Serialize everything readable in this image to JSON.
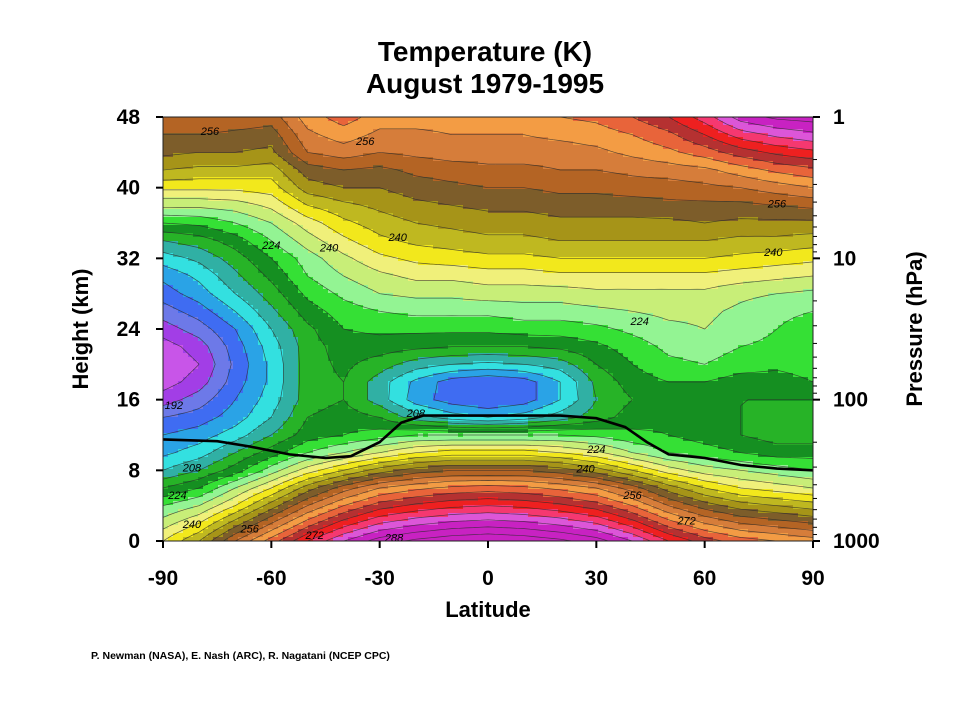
{
  "chart_data": {
    "type": "heatmap",
    "title": "Temperature (K)",
    "subtitle": "August 1979-1995",
    "xlabel": "Latitude",
    "ylabel": "Height (km)",
    "y2label": "Pressure (hPa)",
    "xlim": [
      -90,
      90
    ],
    "ylim": [
      0,
      48
    ],
    "xticks": [
      -90,
      -60,
      -30,
      0,
      30,
      60,
      90
    ],
    "yticks": [
      0,
      8,
      16,
      24,
      32,
      40,
      48
    ],
    "y2ticks": [
      {
        "label": "1",
        "height_km": 48
      },
      {
        "label": "10",
        "height_km": 32
      },
      {
        "label": "100",
        "height_km": 16
      },
      {
        "label": "1000",
        "height_km": 0
      }
    ],
    "contour_interval_K": 8,
    "temperature_range_K": [
      184,
      296
    ],
    "x": [
      -90,
      -80,
      -70,
      -60,
      -50,
      -40,
      -30,
      -20,
      -10,
      0,
      10,
      20,
      30,
      40,
      50,
      60,
      70,
      80,
      90
    ],
    "y": [
      0,
      2,
      4,
      6,
      8,
      10,
      12,
      14,
      16,
      18,
      20,
      22,
      24,
      26,
      28,
      30,
      32,
      34,
      36,
      38,
      40,
      42,
      44,
      46,
      48
    ],
    "z": [
      [
        236,
        244,
        256,
        266,
        276,
        284,
        290,
        293,
        295,
        296,
        295,
        293,
        290,
        284,
        276,
        270,
        266,
        264,
        262
      ],
      [
        230,
        236,
        246,
        256,
        266,
        274,
        280,
        283,
        285,
        286,
        285,
        283,
        280,
        274,
        266,
        260,
        256,
        254,
        252
      ],
      [
        224,
        228,
        236,
        246,
        256,
        264,
        270,
        273,
        275,
        276,
        275,
        273,
        270,
        264,
        256,
        250,
        246,
        244,
        242
      ],
      [
        216,
        220,
        228,
        236,
        246,
        254,
        260,
        263,
        265,
        266,
        265,
        263,
        260,
        254,
        246,
        240,
        236,
        234,
        232
      ],
      [
        208,
        212,
        218,
        226,
        234,
        240,
        246,
        250,
        252,
        252,
        252,
        250,
        246,
        240,
        234,
        230,
        228,
        226,
        224
      ],
      [
        203,
        206,
        212,
        218,
        224,
        228,
        232,
        236,
        238,
        238,
        238,
        236,
        233,
        228,
        224,
        222,
        220,
        218,
        218
      ],
      [
        200,
        202,
        206,
        212,
        218,
        220,
        222,
        224,
        224,
        224,
        224,
        224,
        223,
        221,
        220,
        218,
        216,
        214,
        214
      ],
      [
        196,
        198,
        202,
        208,
        216,
        218,
        216,
        210,
        206,
        204,
        206,
        210,
        214,
        218,
        219,
        218,
        216,
        214,
        214
      ],
      [
        190,
        194,
        200,
        206,
        214,
        216,
        210,
        202,
        198,
        196,
        198,
        204,
        212,
        216,
        218,
        218,
        216,
        216,
        216
      ],
      [
        186,
        190,
        198,
        205,
        214,
        216,
        210,
        203,
        198,
        196,
        198,
        204,
        213,
        218,
        220,
        220,
        218,
        218,
        220
      ],
      [
        184,
        188,
        197,
        205,
        214,
        217,
        214,
        210,
        208,
        207,
        208,
        210,
        216,
        220,
        223,
        224,
        222,
        221,
        222
      ],
      [
        186,
        190,
        198,
        206,
        214,
        218,
        218,
        217,
        216,
        216,
        216,
        217,
        219,
        222,
        225,
        226,
        224,
        223,
        222
      ],
      [
        190,
        194,
        200,
        208,
        215,
        220,
        221,
        221,
        221,
        221,
        222,
        222,
        223,
        225,
        227,
        228,
        226,
        224,
        222
      ],
      [
        194,
        198,
        204,
        211,
        218,
        222,
        224,
        225,
        225,
        225,
        226,
        226,
        227,
        228,
        229,
        229,
        227,
        225,
        224
      ],
      [
        198,
        202,
        208,
        214,
        221,
        225,
        228,
        229,
        229,
        230,
        230,
        230,
        231,
        231,
        231,
        231,
        229,
        228,
        227
      ],
      [
        201,
        205,
        211,
        217,
        224,
        228,
        231,
        233,
        233,
        234,
        234,
        235,
        235,
        235,
        235,
        235,
        234,
        233,
        232
      ],
      [
        206,
        209,
        214,
        220,
        226,
        231,
        235,
        237,
        238,
        239,
        239,
        240,
        240,
        240,
        240,
        240,
        239,
        238,
        237
      ],
      [
        212,
        214,
        218,
        224,
        230,
        235,
        239,
        241,
        242,
        243,
        243,
        244,
        244,
        244,
        244,
        244,
        243,
        243,
        242
      ],
      [
        220,
        221,
        224,
        228,
        234,
        239,
        242,
        244,
        245,
        246,
        246,
        247,
        247,
        247,
        247,
        248,
        247,
        247,
        247
      ],
      [
        229,
        229,
        230,
        233,
        240,
        243,
        245,
        247,
        248,
        249,
        249,
        250,
        250,
        250,
        251,
        251,
        251,
        252,
        253
      ],
      [
        237,
        237,
        237,
        238,
        246,
        248,
        248,
        250,
        251,
        252,
        252,
        253,
        253,
        254,
        254,
        255,
        256,
        258,
        260
      ],
      [
        244,
        243,
        243,
        242,
        250,
        252,
        251,
        253,
        254,
        255,
        255,
        256,
        256,
        257,
        258,
        259,
        262,
        265,
        267
      ],
      [
        249,
        248,
        248,
        247,
        256,
        258,
        256,
        257,
        258,
        258,
        258,
        258,
        259,
        261,
        263,
        266,
        270,
        273,
        275
      ],
      [
        252,
        252,
        251,
        250,
        259,
        262,
        259,
        259,
        260,
        260,
        260,
        261,
        262,
        264,
        267,
        272,
        278,
        281,
        283
      ],
      [
        255,
        256,
        255,
        254,
        262,
        266,
        262,
        262,
        262,
        263,
        263,
        264,
        265,
        268,
        272,
        278,
        286,
        289,
        290
      ]
    ],
    "contour_labels": [
      {
        "text": "256",
        "lat": -77,
        "km": 46.4
      },
      {
        "text": "256",
        "lat": -34,
        "km": 45.3
      },
      {
        "text": "256",
        "lat": 80,
        "km": 38.2
      },
      {
        "text": "240",
        "lat": -44,
        "km": 33.2
      },
      {
        "text": "240",
        "lat": -25,
        "km": 34.4
      },
      {
        "text": "240",
        "lat": 79,
        "km": 32.7
      },
      {
        "text": "224",
        "lat": -60,
        "km": 33.5
      },
      {
        "text": "224",
        "lat": 42,
        "km": 24.9
      },
      {
        "text": "192",
        "lat": -87,
        "km": 15.4
      },
      {
        "text": "208",
        "lat": -20,
        "km": 14.5
      },
      {
        "text": "224",
        "lat": 30,
        "km": 10.4
      },
      {
        "text": "240",
        "lat": 27,
        "km": 8.2
      },
      {
        "text": "256",
        "lat": 40,
        "km": 5.2
      },
      {
        "text": "272",
        "lat": 55,
        "km": 2.3
      },
      {
        "text": "208",
        "lat": -82,
        "km": 8.3
      },
      {
        "text": "224",
        "lat": -86,
        "km": 5.2
      },
      {
        "text": "240",
        "lat": -82,
        "km": 1.9
      },
      {
        "text": "256",
        "lat": -66,
        "km": 1.4
      },
      {
        "text": "272",
        "lat": -48,
        "km": 0.7
      },
      {
        "text": "288",
        "lat": -26,
        "km": 0.4
      }
    ],
    "tropopause": {
      "lat": [
        -90,
        -75,
        -66,
        -55,
        -45,
        -38,
        -30,
        -24,
        -18,
        -10,
        0,
        10,
        20,
        30,
        38,
        44,
        50,
        60,
        70,
        80,
        90
      ],
      "km": [
        11.5,
        11.3,
        10.7,
        9.8,
        9.4,
        9.6,
        11.2,
        13.4,
        14.2,
        14.2,
        14.2,
        14.2,
        14.2,
        13.9,
        12.9,
        11.2,
        9.8,
        9.4,
        8.6,
        8.2,
        8.0
      ]
    },
    "colors": [
      "#c855e8",
      "#a23ee6",
      "#6d79e8",
      "#3f6cf2",
      "#2aa3e6",
      "#33e0e0",
      "#30b0a4",
      "#27b327",
      "#158f21",
      "#35e035",
      "#93f493",
      "#c8ee78",
      "#f0f07a",
      "#f2e81c",
      "#bfb820",
      "#a69418",
      "#7d5d2a",
      "#b46424",
      "#d67d3a",
      "#f39c44",
      "#e8643a",
      "#b53131",
      "#ee2020",
      "#f53870",
      "#dc56d8",
      "#c822c2"
    ]
  },
  "credits": "P. Newman (NASA), E. Nash (ARC), R. Nagatani (NCEP CPC)"
}
